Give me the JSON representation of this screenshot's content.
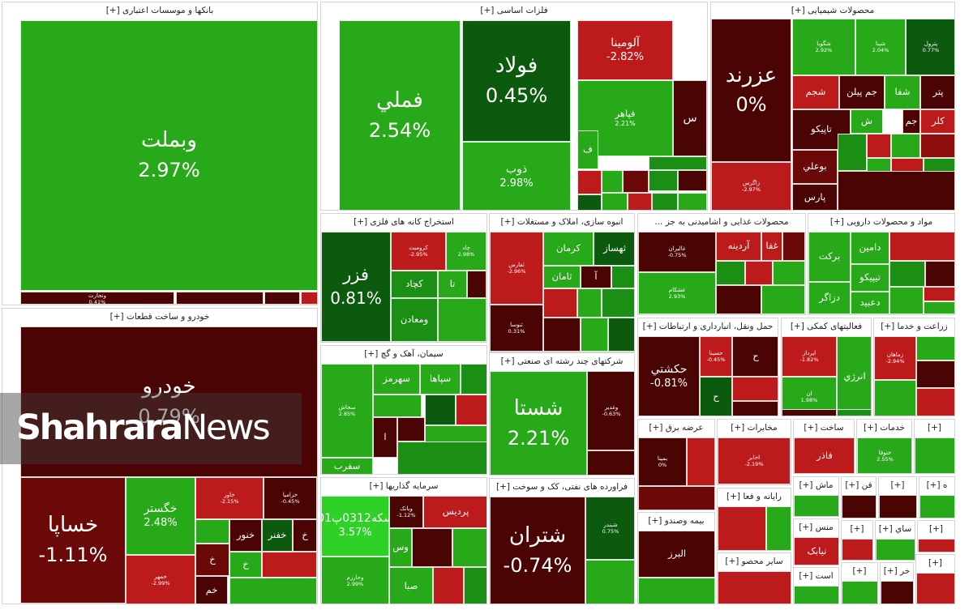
{
  "watermark": {
    "part1": "Shahrara",
    "part2": "News"
  },
  "colors": {
    "g1": "#27a919",
    "g2": "#1b8e14",
    "g3": "#0b5a0e",
    "g4": "#2ed126",
    "r1": "#bd1b1b",
    "r2": "#8e0e0e",
    "r3": "#4b0404",
    "r4": "#6b0808"
  },
  "sectors": [
    {
      "title": "بانکها و موسسات اعتباری [+]",
      "tiles": [
        {
          "name": "وبملت",
          "pct": "2.97%",
          "color": "g1"
        },
        {
          "name": "وتجارت",
          "pct": "0.41%",
          "color": "r3"
        },
        {
          "name": "",
          "pct": "",
          "color": "r3"
        },
        {
          "name": "",
          "pct": "",
          "color": "r3"
        },
        {
          "name": "",
          "pct": "",
          "color": "r1"
        },
        {
          "name": "",
          "pct": "",
          "color": "g2"
        },
        {
          "name": "",
          "pct": "",
          "color": "r2"
        }
      ]
    },
    {
      "title": "فلزات اساسی [+]",
      "tiles": [
        {
          "name": "فملي",
          "pct": "2.54%",
          "color": "g1"
        },
        {
          "name": "فولاد",
          "pct": "0.45%",
          "color": "g3"
        },
        {
          "name": "ذوب",
          "pct": "2.98%",
          "color": "g1"
        },
        {
          "name": "آلومينا",
          "pct": "-2.82%",
          "color": "r1"
        },
        {
          "name": "فپاهر",
          "pct": "2.21%",
          "color": "g1"
        },
        {
          "name": "س",
          "pct": "",
          "color": "r3"
        },
        {
          "name": "ف",
          "pct": "",
          "color": "g1"
        },
        {
          "name": "",
          "pct": "",
          "color": "r1"
        },
        {
          "name": "",
          "pct": "",
          "color": "g1"
        },
        {
          "name": "",
          "pct": "",
          "color": "r4"
        },
        {
          "name": "",
          "pct": "",
          "color": "g2"
        },
        {
          "name": "",
          "pct": "",
          "color": "r3"
        },
        {
          "name": "",
          "pct": "",
          "color": "g1"
        },
        {
          "name": "",
          "pct": "",
          "color": "r1"
        },
        {
          "name": "",
          "pct": "",
          "color": "g2"
        },
        {
          "name": "",
          "pct": "",
          "color": "g1"
        },
        {
          "name": "",
          "pct": "",
          "color": "g3"
        },
        {
          "name": "",
          "pct": "",
          "color": "g2"
        }
      ]
    },
    {
      "title": "محصولات شیمیایی [+]",
      "tiles": [
        {
          "name": "عزرند",
          "pct": "0%",
          "color": "r3"
        },
        {
          "name": "زاگرس",
          "pct": "-2.97%",
          "color": "r1"
        },
        {
          "name": "شگویا",
          "pct": "2.92%",
          "color": "g1"
        },
        {
          "name": "شپنا",
          "pct": "2.04%",
          "color": "g1"
        },
        {
          "name": "پترول",
          "pct": "0.77%",
          "color": "g3"
        },
        {
          "name": "شجم",
          "pct": "",
          "color": "r1"
        },
        {
          "name": "جم پیلن",
          "pct": "",
          "color": "r3"
        },
        {
          "name": "شفا",
          "pct": "",
          "color": "g1"
        },
        {
          "name": "پتر",
          "pct": "",
          "color": "r3"
        },
        {
          "name": "ش",
          "pct": "",
          "color": "g1"
        },
        {
          "name": "جم",
          "pct": "",
          "color": "r3"
        },
        {
          "name": "کلر",
          "pct": "",
          "color": "r1"
        },
        {
          "name": "تاپیکو",
          "pct": "",
          "color": "r3"
        },
        {
          "name": "بوعلي",
          "pct": "",
          "color": "r4"
        },
        {
          "name": "پارس",
          "pct": "",
          "color": "r3"
        },
        {
          "name": "",
          "pct": "",
          "color": "g2"
        },
        {
          "name": "",
          "pct": "",
          "color": "r1"
        },
        {
          "name": "",
          "pct": "",
          "color": "g1"
        },
        {
          "name": "",
          "pct": "",
          "color": "r2"
        },
        {
          "name": "",
          "pct": "",
          "color": "g1"
        },
        {
          "name": "",
          "pct": "",
          "color": "r1"
        },
        {
          "name": "",
          "pct": "",
          "color": "g2"
        },
        {
          "name": "",
          "pct": "",
          "color": "r3"
        }
      ]
    },
    {
      "title": "استخراج کانه های فلزی [+]",
      "tiles": [
        {
          "name": "فزر",
          "pct": "0.81%",
          "color": "g3"
        },
        {
          "name": "کرومیت",
          "pct": "-2.95%",
          "color": "r1"
        },
        {
          "name": "چاد",
          "pct": "2.98%",
          "color": "g1"
        },
        {
          "name": "کچاد",
          "pct": "",
          "color": "g2"
        },
        {
          "name": "تا",
          "pct": "",
          "color": "g1"
        },
        {
          "name": "ومعادن",
          "pct": "",
          "color": "g2"
        },
        {
          "name": "",
          "pct": "",
          "color": "r3"
        },
        {
          "name": "",
          "pct": "",
          "color": "g1"
        }
      ]
    },
    {
      "title": "انبوه سازی، املاک و مستغلات [+]",
      "tiles": [
        {
          "name": "ثفارس",
          "pct": "-2.96%",
          "color": "r1"
        },
        {
          "name": "ثنوسا",
          "pct": "0.31%",
          "color": "r3"
        },
        {
          "name": "ثهساز",
          "pct": "",
          "color": "g3"
        },
        {
          "name": "كرمان",
          "pct": "",
          "color": "g1"
        },
        {
          "name": "آ",
          "pct": "",
          "color": "r3"
        },
        {
          "name": "ثامان",
          "pct": "",
          "color": "g1"
        },
        {
          "name": "",
          "pct": "",
          "color": "g2"
        },
        {
          "name": "",
          "pct": "",
          "color": "r1"
        },
        {
          "name": "",
          "pct": "",
          "color": "g1"
        },
        {
          "name": "",
          "pct": "",
          "color": "g2"
        },
        {
          "name": "",
          "pct": "",
          "color": "r3"
        },
        {
          "name": "",
          "pct": "",
          "color": "g1"
        },
        {
          "name": "",
          "pct": "",
          "color": "g3"
        }
      ]
    },
    {
      "title": "محصولات غذایی و اشامیدنی به جز ...",
      "tiles": [
        {
          "name": "غاليران",
          "pct": "-0.75%",
          "color": "r3"
        },
        {
          "name": "غشکام",
          "pct": "2.93%",
          "color": "g1"
        },
        {
          "name": "آردينه",
          "pct": "",
          "color": "r1"
        },
        {
          "name": "غفا",
          "pct": "",
          "color": "r1"
        },
        {
          "name": "",
          "pct": "",
          "color": "r4"
        },
        {
          "name": "",
          "pct": "",
          "color": "g2"
        },
        {
          "name": "",
          "pct": "",
          "color": "r1"
        },
        {
          "name": "",
          "pct": "",
          "color": "g1"
        },
        {
          "name": "",
          "pct": "",
          "color": "r3"
        },
        {
          "name": "",
          "pct": "",
          "color": "g1"
        }
      ]
    },
    {
      "title": "مواد و محصولات دارویی [+]",
      "tiles": [
        {
          "name": "برکت",
          "pct": "",
          "color": "g1"
        },
        {
          "name": "دامین",
          "pct": "",
          "color": "g1"
        },
        {
          "name": "تيپيکو",
          "pct": "",
          "color": "g1"
        },
        {
          "name": "دزاگر",
          "pct": "",
          "color": "g1"
        },
        {
          "name": "دعبيد",
          "pct": "",
          "color": "g1"
        },
        {
          "name": "",
          "pct": "",
          "color": "r1"
        },
        {
          "name": "",
          "pct": "",
          "color": "g2"
        },
        {
          "name": "",
          "pct": "",
          "color": "r3"
        },
        {
          "name": "",
          "pct": "",
          "color": "g1"
        },
        {
          "name": "",
          "pct": "",
          "color": "r1"
        },
        {
          "name": "",
          "pct": "",
          "color": "g1"
        }
      ]
    },
    {
      "title": "خودرو و ساخت قطعات [+]",
      "tiles": [
        {
          "name": "خودرو",
          "pct": "0.79%",
          "color": "r3"
        },
        {
          "name": "خساپا",
          "pct": "-1.11%",
          "color": "r4"
        },
        {
          "name": "خگستر",
          "pct": "2.48%",
          "color": "g1"
        },
        {
          "name": "خاور",
          "pct": "-2.15%",
          "color": "r1"
        },
        {
          "name": "خزامیا",
          "pct": "-0.45%",
          "color": "r3"
        },
        {
          "name": "خمهر",
          "pct": "-2.99%",
          "color": "r1"
        },
        {
          "name": "خنور",
          "pct": "",
          "color": "r3"
        },
        {
          "name": "خفنر",
          "pct": "",
          "color": "g3"
        },
        {
          "name": "خ",
          "pct": "",
          "color": "r3"
        },
        {
          "name": "خ",
          "pct": "",
          "color": "r4"
        },
        {
          "name": "خ",
          "pct": "",
          "color": "g1"
        },
        {
          "name": "خم",
          "pct": "",
          "color": "r3"
        },
        {
          "name": "",
          "pct": "",
          "color": "g1"
        },
        {
          "name": "",
          "pct": "",
          "color": "r1"
        },
        {
          "name": "",
          "pct": "",
          "color": "g1"
        }
      ]
    },
    {
      "title": "سیمان، آهک و گچ [+]",
      "tiles": [
        {
          "name": "سخاش",
          "pct": "2.85%",
          "color": "g1"
        },
        {
          "name": "سفرب",
          "pct": "",
          "color": "g1"
        },
        {
          "name": "سهرمز",
          "pct": "",
          "color": "g1"
        },
        {
          "name": "سپاها",
          "pct": "",
          "color": "g1"
        },
        {
          "name": "ا",
          "pct": "",
          "color": "r3"
        },
        {
          "name": "",
          "pct": "",
          "color": "g2"
        },
        {
          "name": "",
          "pct": "",
          "color": "g1"
        },
        {
          "name": "",
          "pct": "",
          "color": "r3"
        },
        {
          "name": "",
          "pct": "",
          "color": "g3"
        },
        {
          "name": "",
          "pct": "",
          "color": "r1"
        },
        {
          "name": "",
          "pct": "",
          "color": "g1"
        },
        {
          "name": "",
          "pct": "",
          "color": "g2"
        }
      ]
    },
    {
      "title": "شرکتهای چند رشته ای صنعتی [+]",
      "tiles": [
        {
          "name": "شستا",
          "pct": "2.21%",
          "color": "g1"
        },
        {
          "name": "وغدير",
          "pct": "-0.63%",
          "color": "r3"
        },
        {
          "name": "",
          "pct": "",
          "color": "r3"
        }
      ]
    },
    {
      "title": "سرمایه گذاریها [+]",
      "tiles": [
        {
          "name": "سکه0312پ01",
          "pct": "3.57%",
          "color": "g4"
        },
        {
          "name": "وبانک",
          "pct": "-1.12%",
          "color": "r3"
        },
        {
          "name": "پرديس",
          "pct": "",
          "color": "r1"
        },
        {
          "name": "وس",
          "pct": "",
          "color": "g1"
        },
        {
          "name": "وخارزم",
          "pct": "2.99%",
          "color": "g1"
        },
        {
          "name": "صبا",
          "pct": "",
          "color": "g1"
        },
        {
          "name": "",
          "pct": "",
          "color": "r3"
        },
        {
          "name": "",
          "pct": "",
          "color": "g1"
        },
        {
          "name": "",
          "pct": "",
          "color": "r1"
        },
        {
          "name": "",
          "pct": "",
          "color": "g2"
        }
      ]
    },
    {
      "title": "فراورده های نفتی، کک و سوخت [+]",
      "tiles": [
        {
          "name": "شتران",
          "pct": "-0.74%",
          "color": "r3"
        },
        {
          "name": "شبندر",
          "pct": "0.75%",
          "color": "g3"
        },
        {
          "name": "",
          "pct": "",
          "color": "g1"
        }
      ]
    },
    {
      "title": "حمل ونقل، انبارداری و ارتباطات [+]",
      "tiles": [
        {
          "name": "حکشتي",
          "pct": "-0.81%",
          "color": "r3"
        },
        {
          "name": "حسينا",
          "pct": "-0.45%",
          "color": "r1"
        },
        {
          "name": "ح",
          "pct": "",
          "color": "r3"
        },
        {
          "name": "ح",
          "pct": "",
          "color": "g3"
        },
        {
          "name": "",
          "pct": "",
          "color": "r1"
        },
        {
          "name": "",
          "pct": "",
          "color": "r3"
        }
      ]
    },
    {
      "title": "فعالیتهای کمکی [+]",
      "tiles": [
        {
          "name": "اپرداز",
          "pct": "-1.82%",
          "color": "r1"
        },
        {
          "name": "ان",
          "pct": "1.98%",
          "color": "g1"
        },
        {
          "name": "انرژي",
          "pct": "",
          "color": "g1"
        },
        {
          "name": "",
          "pct": "",
          "color": "r3"
        },
        {
          "name": "",
          "pct": "",
          "color": "g2"
        }
      ]
    },
    {
      "title": "زراعت و خدما [+]",
      "tiles": [
        {
          "name": "زماهان",
          "pct": "-2.94%",
          "color": "r1"
        },
        {
          "name": "",
          "pct": "",
          "color": "g1"
        },
        {
          "name": "",
          "pct": "",
          "color": "r3"
        },
        {
          "name": "",
          "pct": "",
          "color": "g1"
        },
        {
          "name": "",
          "pct": "",
          "color": "r1"
        }
      ]
    },
    {
      "title": "عرضه برق [+]",
      "tiles": [
        {
          "name": "بمپنا",
          "pct": "0%",
          "color": "r3"
        },
        {
          "name": "",
          "pct": "",
          "color": "r1"
        },
        {
          "name": "",
          "pct": "",
          "color": "r4"
        }
      ]
    },
    {
      "title": "مخابرات [+]",
      "tiles": [
        {
          "name": "اخابر",
          "pct": "-2.19%",
          "color": "r1"
        },
        {
          "name": "",
          "pct": "",
          "color": "g1"
        }
      ]
    },
    {
      "title": "ساخت [+]",
      "tiles": [
        {
          "name": "فاذر",
          "pct": "",
          "color": "r1"
        },
        {
          "name": "",
          "pct": "",
          "color": "g1"
        }
      ]
    },
    {
      "title": "خدمات [+]",
      "tiles": [
        {
          "name": "ختوقا",
          "pct": "2.55%",
          "color": "g1"
        }
      ]
    },
    {
      "title": "[+]",
      "tiles": [
        {
          "name": "",
          "pct": "",
          "color": "g1"
        }
      ]
    },
    {
      "title": "بیمه وصندو [+]",
      "tiles": [
        {
          "name": "البرز",
          "pct": "",
          "color": "r3"
        },
        {
          "name": "",
          "pct": "",
          "color": "g1"
        }
      ]
    },
    {
      "title": "رایانه و فعا [+]",
      "tiles": [
        {
          "name": "",
          "pct": "",
          "color": "r1"
        },
        {
          "name": "",
          "pct": "",
          "color": "g1"
        }
      ]
    },
    {
      "title": "سایر محصو [+]",
      "tiles": [
        {
          "name": "",
          "pct": "",
          "color": "r1"
        }
      ]
    },
    {
      "title": "ماش [+]",
      "tiles": [
        {
          "name": "",
          "pct": "",
          "color": "g1"
        }
      ]
    },
    {
      "title": "منس [+]",
      "tiles": [
        {
          "name": "نيابک",
          "pct": "",
          "color": "r1"
        }
      ]
    },
    {
      "title": "است [+]",
      "tiles": [
        {
          "name": "",
          "pct": "",
          "color": "g1"
        }
      ]
    },
    {
      "title": "فن [+]",
      "tiles": [
        {
          "name": "",
          "pct": "",
          "color": "r3"
        }
      ]
    },
    {
      "title": "[+]",
      "tiles": [
        {
          "name": "",
          "pct": "",
          "color": "r3"
        }
      ]
    },
    {
      "title": "ه [+]",
      "tiles": [
        {
          "name": "",
          "pct": "",
          "color": "g1"
        }
      ]
    },
    {
      "title": "[+]",
      "tiles": [
        {
          "name": "",
          "pct": "",
          "color": "r1"
        }
      ]
    },
    {
      "title": "ساي [+]",
      "tiles": [
        {
          "name": "",
          "pct": "",
          "color": "g1"
        }
      ]
    },
    {
      "title": "[+]",
      "tiles": [
        {
          "name": "",
          "pct": "",
          "color": "r1"
        }
      ]
    },
    {
      "title": "[+]",
      "tiles": [
        {
          "name": "",
          "pct": "",
          "color": "g1"
        }
      ]
    },
    {
      "title": "خر [+]",
      "tiles": [
        {
          "name": "",
          "pct": "",
          "color": "r3"
        }
      ]
    },
    {
      "title": "[+]",
      "tiles": [
        {
          "name": "",
          "pct": "",
          "color": "r1"
        }
      ]
    }
  ]
}
